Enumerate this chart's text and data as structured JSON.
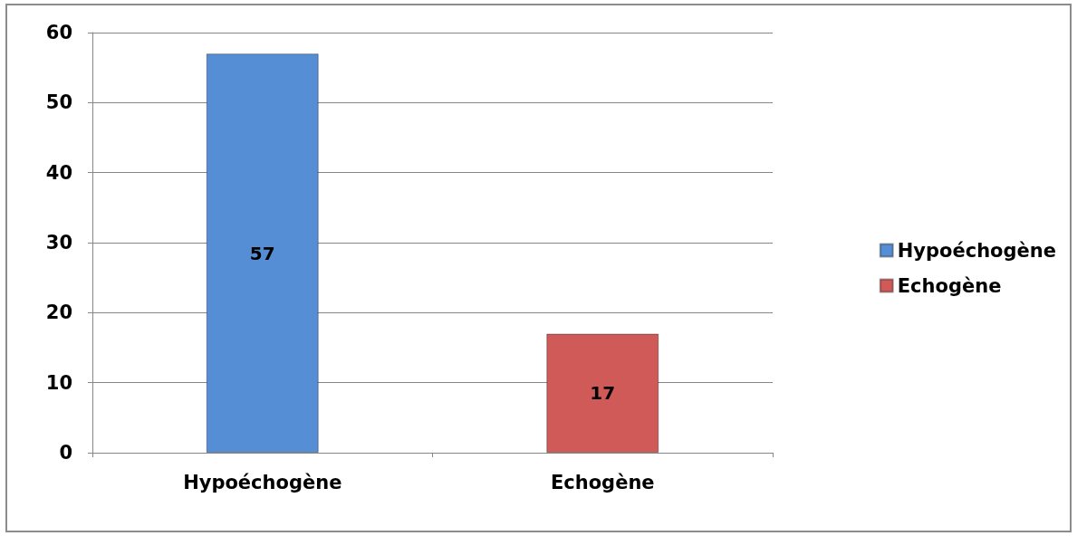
{
  "chart_data": {
    "type": "bar",
    "categories": [
      "Hypoéchogène",
      "Echogène"
    ],
    "series": [
      {
        "name": "Hypoéchogène",
        "color": "#558ed5",
        "values": [
          57,
          null
        ]
      },
      {
        "name": "Echogène",
        "color": "#d05a58",
        "values": [
          null,
          17
        ]
      }
    ],
    "stacked": true,
    "data_labels": true,
    "ylim": [
      0,
      60
    ],
    "yticks": [
      0,
      10,
      20,
      30,
      40,
      50,
      60
    ],
    "grid": "y",
    "legend": "right"
  }
}
